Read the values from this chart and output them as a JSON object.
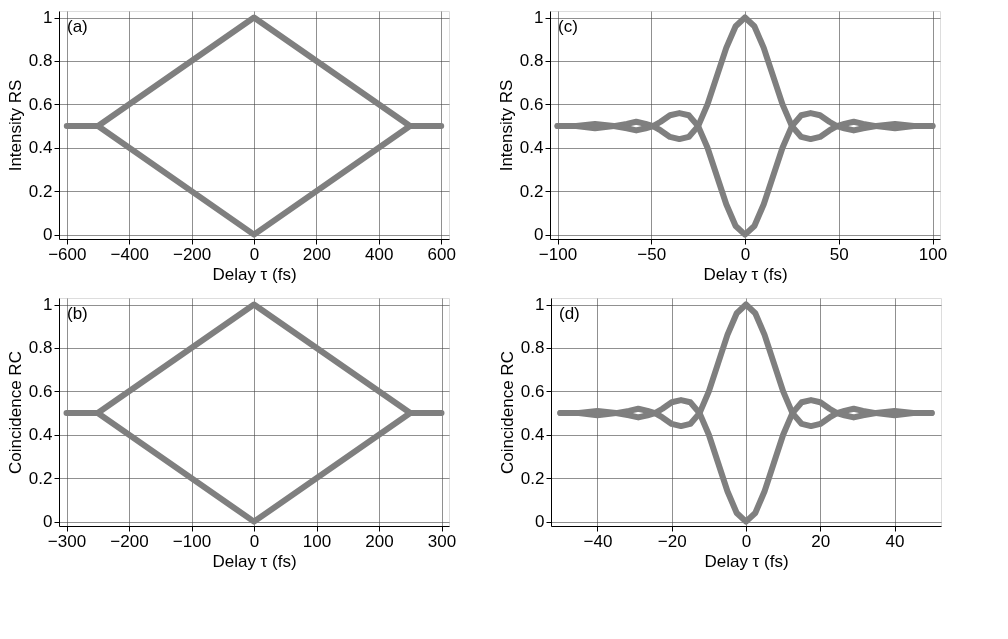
{
  "chart_data": [
    {
      "type": "line",
      "xlabel": "Delay τ (fs)",
      "ylabel": "Intensity RS",
      "annotations": [
        "(a)"
      ],
      "grid": true,
      "xlim": [
        -625,
        625
      ],
      "xticks": [
        -600,
        -400,
        -200,
        0,
        200,
        400,
        600
      ],
      "ylim": [
        -0.02,
        1.03
      ],
      "yticks": [
        0,
        0.2,
        0.4,
        0.6,
        0.8,
        1
      ],
      "series": [
        {
          "color": "#7f7f7f",
          "x": [
            -600,
            -500,
            0,
            500,
            600
          ],
          "values": [
            0.5,
            0.5,
            1,
            0.5,
            0.5
          ]
        },
        {
          "color": "#7f7f7f",
          "x": [
            -500,
            0,
            500
          ],
          "values": [
            0.5,
            0,
            0.5
          ]
        }
      ]
    },
    {
      "type": "line",
      "xlabel": "Delay τ (fs)",
      "ylabel": "Intensity RS",
      "annotations": [
        "(c)"
      ],
      "grid": true,
      "xlim": [
        -104,
        104
      ],
      "xticks": [
        -100,
        -50,
        0,
        50,
        100
      ],
      "ylim": [
        -0.02,
        1.03
      ],
      "yticks": [
        0,
        0.2,
        0.4,
        0.6,
        0.8,
        1
      ],
      "series": [
        {
          "color": "#7f7f7f",
          "x": [
            -100,
            -90,
            -80,
            -70,
            -63,
            -58,
            -53,
            -49,
            -45,
            -40,
            -35,
            -30,
            -25,
            -20,
            -15,
            -10,
            -5,
            0,
            5,
            10,
            15,
            20,
            25,
            30,
            35,
            40,
            45,
            49,
            53,
            58,
            63,
            70,
            80,
            90,
            100
          ],
          "values": [
            0.5,
            0.5,
            0.49,
            0.5,
            0.51,
            0.52,
            0.51,
            0.5,
            0.48,
            0.45,
            0.44,
            0.45,
            0.5,
            0.6,
            0.73,
            0.86,
            0.96,
            1,
            0.96,
            0.86,
            0.73,
            0.6,
            0.5,
            0.45,
            0.44,
            0.45,
            0.48,
            0.5,
            0.51,
            0.52,
            0.51,
            0.5,
            0.49,
            0.5,
            0.5
          ]
        },
        {
          "color": "#7f7f7f",
          "x": [
            -100,
            -90,
            -80,
            -70,
            -63,
            -58,
            -53,
            -49,
            -45,
            -40,
            -35,
            -30,
            -25,
            -20,
            -15,
            -10,
            -5,
            0,
            5,
            10,
            15,
            20,
            25,
            30,
            35,
            40,
            45,
            49,
            53,
            58,
            63,
            70,
            80,
            90,
            100
          ],
          "values": [
            0.5,
            0.5,
            0.51,
            0.5,
            0.49,
            0.48,
            0.49,
            0.5,
            0.52,
            0.55,
            0.56,
            0.55,
            0.5,
            0.4,
            0.27,
            0.14,
            0.04,
            0,
            0.04,
            0.14,
            0.27,
            0.4,
            0.5,
            0.55,
            0.56,
            0.55,
            0.52,
            0.5,
            0.49,
            0.48,
            0.49,
            0.5,
            0.51,
            0.5,
            0.5
          ]
        }
      ]
    },
    {
      "type": "line",
      "xlabel": "Delay τ (fs)",
      "ylabel": "Coincidence RC",
      "annotations": [
        "(b)"
      ],
      "grid": true,
      "xlim": [
        -312,
        312
      ],
      "xticks": [
        -300,
        -200,
        -100,
        0,
        100,
        200,
        300
      ],
      "ylim": [
        -0.02,
        1.03
      ],
      "yticks": [
        0,
        0.2,
        0.4,
        0.6,
        0.8,
        1
      ],
      "series": [
        {
          "color": "#7f7f7f",
          "x": [
            -300,
            -250,
            0,
            250,
            300
          ],
          "values": [
            0.5,
            0.5,
            1,
            0.5,
            0.5
          ]
        },
        {
          "color": "#7f7f7f",
          "x": [
            -250,
            0,
            250
          ],
          "values": [
            0.5,
            0,
            0.5
          ]
        }
      ]
    },
    {
      "type": "line",
      "xlabel": "Delay τ (fs)",
      "ylabel": "Coincidence RC",
      "annotations": [
        "(d)"
      ],
      "grid": true,
      "xlim": [
        -52.5,
        52.5
      ],
      "xticks": [
        -40,
        -20,
        0,
        20,
        40
      ],
      "ylim": [
        -0.02,
        1.03
      ],
      "yticks": [
        0,
        0.2,
        0.4,
        0.6,
        0.8,
        1
      ],
      "series": [
        {
          "color": "#7f7f7f",
          "x": [
            -50,
            -45,
            -40,
            -35,
            -31.5,
            -29,
            -26.5,
            -24.5,
            -22.5,
            -20,
            -17.5,
            -15,
            -12.5,
            -10,
            -7.5,
            -5,
            -2.5,
            0,
            2.5,
            5,
            7.5,
            10,
            12.5,
            15,
            17.5,
            20,
            22.5,
            24.5,
            26.5,
            29,
            31.5,
            35,
            40,
            45,
            50
          ],
          "values": [
            0.5,
            0.5,
            0.49,
            0.5,
            0.51,
            0.52,
            0.51,
            0.5,
            0.48,
            0.45,
            0.44,
            0.45,
            0.5,
            0.6,
            0.73,
            0.86,
            0.96,
            1,
            0.96,
            0.86,
            0.73,
            0.6,
            0.5,
            0.45,
            0.44,
            0.45,
            0.48,
            0.5,
            0.51,
            0.52,
            0.51,
            0.5,
            0.49,
            0.5,
            0.5
          ]
        },
        {
          "color": "#7f7f7f",
          "x": [
            -50,
            -45,
            -40,
            -35,
            -31.5,
            -29,
            -26.5,
            -24.5,
            -22.5,
            -20,
            -17.5,
            -15,
            -12.5,
            -10,
            -7.5,
            -5,
            -2.5,
            0,
            2.5,
            5,
            7.5,
            10,
            12.5,
            15,
            17.5,
            20,
            22.5,
            24.5,
            26.5,
            29,
            31.5,
            35,
            40,
            45,
            50
          ],
          "values": [
            0.5,
            0.5,
            0.51,
            0.5,
            0.49,
            0.48,
            0.49,
            0.5,
            0.52,
            0.55,
            0.56,
            0.55,
            0.5,
            0.4,
            0.27,
            0.14,
            0.04,
            0,
            0.04,
            0.14,
            0.27,
            0.4,
            0.5,
            0.55,
            0.56,
            0.55,
            0.52,
            0.5,
            0.49,
            0.48,
            0.49,
            0.5,
            0.51,
            0.5,
            0.5
          ]
        }
      ]
    }
  ]
}
